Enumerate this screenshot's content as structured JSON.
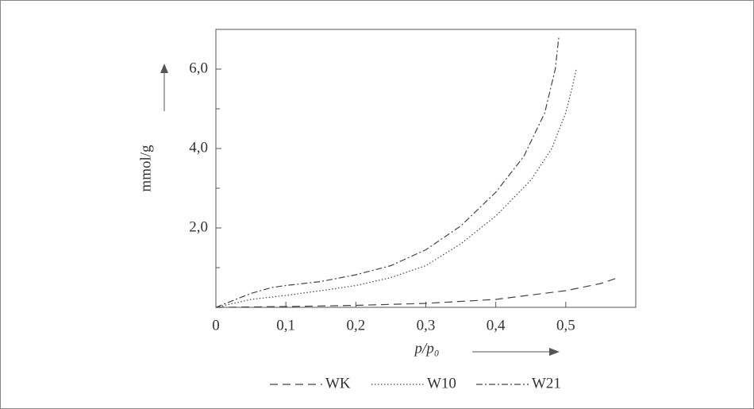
{
  "chart_data": {
    "type": "line",
    "ylabel": "mmol/g",
    "xlabel": "p/p₀",
    "xlim": [
      0,
      0.6
    ],
    "ylim": [
      0,
      7
    ],
    "xticks": [
      0,
      {
        "value": 0.1,
        "label": "0,1"
      },
      {
        "value": 0.2,
        "label": "0,2"
      },
      {
        "value": 0.3,
        "label": "0,3"
      },
      {
        "value": 0.4,
        "label": "0,4"
      },
      {
        "value": 0.5,
        "label": "0,5"
      }
    ],
    "yticks": [
      {
        "value": 2,
        "label": "2,0"
      },
      {
        "value": 4,
        "label": "4,0"
      },
      {
        "value": 6,
        "label": "6,0"
      }
    ],
    "yticks_minor": [
      1,
      3,
      5
    ],
    "series": [
      {
        "name": "WK",
        "color": "#444",
        "dash": "10 6",
        "x": [
          0,
          0.1,
          0.2,
          0.3,
          0.4,
          0.5,
          0.55,
          0.575
        ],
        "values": [
          0,
          0.02,
          0.05,
          0.1,
          0.2,
          0.42,
          0.6,
          0.75
        ]
      },
      {
        "name": "W10",
        "color": "#444",
        "dash": "1.5 2.5",
        "x": [
          0,
          0.05,
          0.1,
          0.15,
          0.2,
          0.25,
          0.3,
          0.35,
          0.4,
          0.45,
          0.48,
          0.5,
          0.51,
          0.515
        ],
        "values": [
          0,
          0.2,
          0.3,
          0.42,
          0.55,
          0.75,
          1.05,
          1.6,
          2.3,
          3.2,
          4.0,
          4.9,
          5.6,
          6.0
        ]
      },
      {
        "name": "W21",
        "color": "#444",
        "dash": "8 3 2 3",
        "x": [
          0,
          0.05,
          0.08,
          0.1,
          0.15,
          0.2,
          0.25,
          0.3,
          0.35,
          0.4,
          0.44,
          0.47,
          0.485,
          0.49
        ],
        "values": [
          0,
          0.35,
          0.5,
          0.55,
          0.65,
          0.82,
          1.05,
          1.45,
          2.05,
          2.9,
          3.8,
          4.9,
          6.0,
          6.8
        ]
      }
    ]
  }
}
